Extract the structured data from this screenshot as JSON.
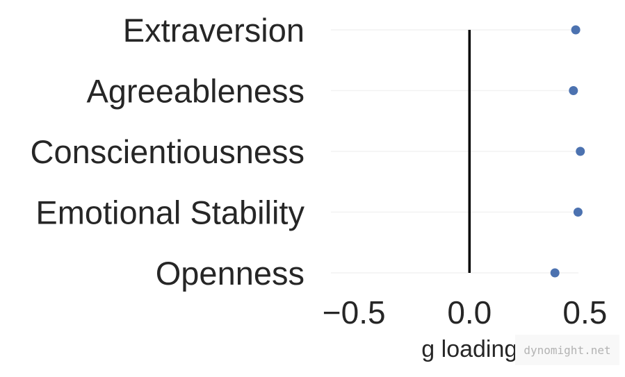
{
  "chart_data": {
    "type": "scatter",
    "categories": [
      "Extraversion",
      "Agreeableness",
      "Conscientiousness",
      "Emotional Stability",
      "Openness"
    ],
    "values": [
      0.46,
      0.45,
      0.48,
      0.47,
      0.37
    ],
    "xlabel": "g loading",
    "xlim": [
      -0.6,
      0.55
    ],
    "xticks": [
      -0.5,
      0.0,
      0.5
    ],
    "xtick_labels": [
      "−0.5",
      "0.0",
      "0.5"
    ],
    "reference_line_x": 0,
    "grid": "horizontal",
    "colors": {
      "marker": "#4c72b0",
      "reference_line": "#000000",
      "grid": "#f2f2f2",
      "text": "#262626"
    }
  },
  "watermark": "dynomight.net"
}
